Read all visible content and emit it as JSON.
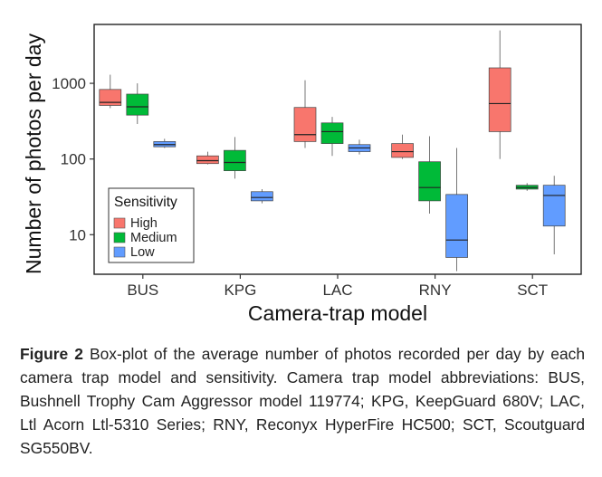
{
  "chart_data": {
    "type": "boxplot",
    "xlabel": "Camera-trap model",
    "ylabel": "Number of photos per day",
    "yscale": "log10",
    "ylim": [
      3,
      6000
    ],
    "y_ticks": [
      10,
      100,
      1000
    ],
    "y_tick_labels": [
      "10",
      "100",
      "1000"
    ],
    "grid": false,
    "legend": {
      "title": "Sensitivity",
      "placement": "bottom-left",
      "entries": [
        "High",
        "Medium",
        "Low"
      ]
    },
    "categories": [
      "BUS",
      "KPG",
      "LAC",
      "RNY",
      "SCT"
    ],
    "series": [
      {
        "name": "High",
        "color": "#F8766D",
        "boxes": [
          {
            "category": "BUS",
            "min": 470,
            "q1": 510,
            "median": 560,
            "q3": 830,
            "max": 1300
          },
          {
            "category": "KPG",
            "min": 85,
            "q1": 87,
            "median": 95,
            "q3": 110,
            "max": 125
          },
          {
            "category": "LAC",
            "min": 140,
            "q1": 170,
            "median": 210,
            "q3": 480,
            "max": 1100
          },
          {
            "category": "RNY",
            "min": 100,
            "q1": 105,
            "median": 125,
            "q3": 160,
            "max": 210
          },
          {
            "category": "SCT",
            "min": 100,
            "q1": 230,
            "median": 540,
            "q3": 1600,
            "max": 5000
          }
        ]
      },
      {
        "name": "Medium",
        "color": "#00BA38",
        "boxes": [
          {
            "category": "BUS",
            "min": 290,
            "q1": 380,
            "median": 490,
            "q3": 720,
            "max": 1000
          },
          {
            "category": "KPG",
            "min": 55,
            "q1": 70,
            "median": 90,
            "q3": 130,
            "max": 195
          },
          {
            "category": "LAC",
            "min": 110,
            "q1": 160,
            "median": 230,
            "q3": 300,
            "max": 360
          },
          {
            "category": "RNY",
            "min": 19,
            "q1": 28,
            "median": 42,
            "q3": 92,
            "max": 200
          },
          {
            "category": "SCT",
            "min": 38,
            "q1": 40,
            "median": 42,
            "q3": 45,
            "max": 48
          }
        ]
      },
      {
        "name": "Low",
        "color": "#619CFF",
        "boxes": [
          {
            "category": "BUS",
            "min": 140,
            "q1": 145,
            "median": 155,
            "q3": 170,
            "max": 185
          },
          {
            "category": "KPG",
            "min": 26,
            "q1": 28,
            "median": 31,
            "q3": 37,
            "max": 40
          },
          {
            "category": "LAC",
            "min": 115,
            "q1": 125,
            "median": 140,
            "q3": 155,
            "max": 180
          },
          {
            "category": "RNY",
            "min": 3.3,
            "q1": 5,
            "median": 8.5,
            "q3": 34,
            "max": 140
          },
          {
            "category": "SCT",
            "min": 5.5,
            "q1": 13,
            "median": 33,
            "q3": 45,
            "max": 60
          }
        ]
      }
    ]
  },
  "caption": {
    "label": "Figure 2",
    "text": " Box-plot of the average number of photos recorded per day by each camera trap model and sensitivity. Camera trap model abbreviations: BUS, Bushnell Trophy Cam Aggressor model 119774; KPG, KeepGuard 680V; LAC, Ltl Acorn Ltl-5310 Series; RNY, Reconyx HyperFire HC500; SCT, Scoutguard SG550BV."
  }
}
